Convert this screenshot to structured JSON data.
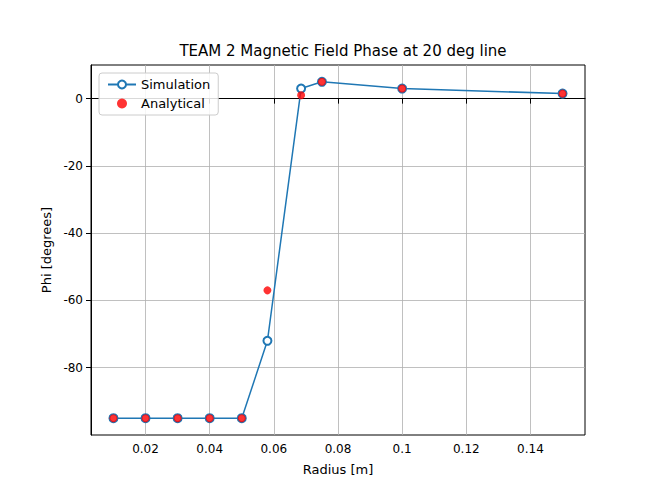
{
  "chart_data": {
    "type": "line",
    "title": "TEAM 2 Magnetic Field Phase at 20 deg line",
    "x_label": "Radius [m]",
    "y_label": "Phi [degrees]",
    "x": [
      0.01,
      0.02,
      0.03,
      0.04,
      0.05,
      0.058,
      0.0685,
      0.075,
      0.1,
      0.15
    ],
    "series": [
      {
        "name": "Simulation",
        "type": "line",
        "color": "#1f77b4",
        "marker": "open_circle",
        "line_style": "solid",
        "values": [
          -95,
          -95,
          -95,
          -95,
          -95,
          -72,
          3,
          5,
          3,
          1.5
        ]
      },
      {
        "name": "Analytical",
        "type": "scatter",
        "color": "#ff0000",
        "marker": "circle",
        "values": [
          -95,
          -95,
          -95,
          -95,
          -95,
          -57,
          1,
          5,
          3,
          1.5
        ]
      }
    ],
    "xlim": [
      0.003,
      0.157
    ],
    "xticks": [
      0.02,
      0.04,
      0.06,
      0.08,
      0.1,
      0.12,
      0.14
    ],
    "ylim": [
      -100,
      10
    ],
    "yticks": [
      -80,
      -60,
      -40,
      -20,
      0
    ],
    "grid": true,
    "legend": "upper left"
  }
}
